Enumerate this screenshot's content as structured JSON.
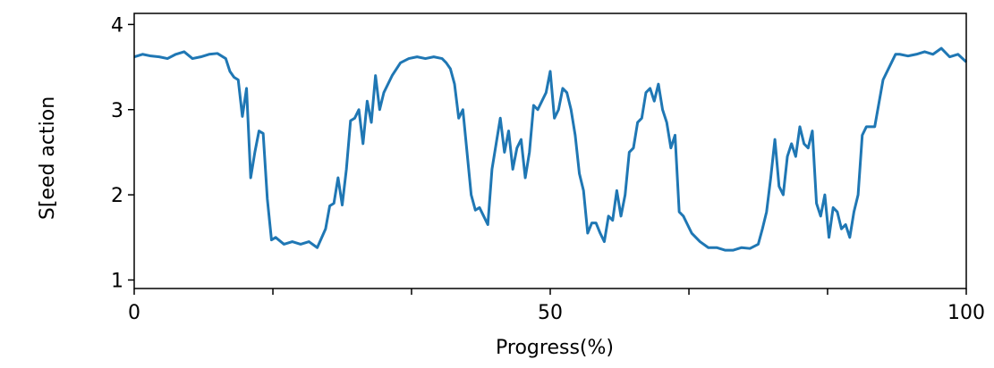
{
  "chart_data": {
    "type": "line",
    "xlabel": "Progress(%)",
    "ylabel": "S[eed action",
    "xlim": [
      0,
      100
    ],
    "ylim": [
      0.9,
      4.13
    ],
    "xticks": [
      0,
      50,
      100
    ],
    "xticks_minor": [
      16.67,
      33.33,
      66.67,
      83.33
    ],
    "yticks": [
      1,
      2,
      3,
      4
    ],
    "series": [
      {
        "color": "#1f77b4",
        "x": [
          0,
          1,
          2,
          3,
          4,
          5,
          6,
          7,
          8,
          9,
          10,
          11,
          11.5,
          12,
          12.5,
          13,
          13.5,
          14,
          14.5,
          15,
          15.5,
          16,
          16.5,
          17,
          18,
          19,
          20,
          21,
          22,
          23,
          23.5,
          24,
          24.5,
          25,
          25.5,
          26,
          26.5,
          27,
          27.5,
          28,
          28.5,
          29,
          29.5,
          30,
          31,
          32,
          33,
          34,
          35,
          36,
          37,
          37.5,
          38,
          38.5,
          39,
          39.5,
          40,
          40.5,
          41,
          41.5,
          42,
          42.5,
          43,
          43.5,
          44,
          44.5,
          45,
          45.5,
          46,
          46.5,
          47,
          47.5,
          48,
          48.5,
          49,
          49.5,
          50,
          50.5,
          51,
          51.5,
          52,
          52.5,
          53,
          53.5,
          54,
          54.5,
          55,
          55.5,
          56,
          56.5,
          57,
          57.5,
          58,
          58.5,
          59,
          59.5,
          60,
          60.5,
          61,
          61.5,
          62,
          62.5,
          63,
          63.5,
          64,
          64.5,
          65,
          65.5,
          66,
          66.5,
          67,
          68,
          69,
          70,
          71,
          72,
          73,
          74,
          75,
          75.5,
          76,
          76.5,
          77,
          77.5,
          78,
          78.5,
          79,
          79.5,
          80,
          80.5,
          81,
          81.5,
          82,
          82.5,
          83,
          83.5,
          84,
          84.5,
          85,
          85.5,
          86,
          86.5,
          87,
          87.5,
          88,
          89,
          90,
          91,
          91.5,
          92,
          93,
          94,
          95,
          96,
          97,
          98,
          99,
          100
        ],
        "values": [
          3.62,
          3.65,
          3.63,
          3.62,
          3.6,
          3.65,
          3.68,
          3.6,
          3.62,
          3.65,
          3.66,
          3.6,
          3.45,
          3.38,
          3.35,
          2.92,
          3.25,
          2.2,
          2.5,
          2.75,
          2.72,
          1.95,
          1.47,
          1.5,
          1.42,
          1.45,
          1.42,
          1.45,
          1.38,
          1.6,
          1.87,
          1.9,
          2.2,
          1.88,
          2.3,
          2.87,
          2.9,
          3.0,
          2.6,
          3.1,
          2.85,
          3.4,
          3.0,
          3.2,
          3.4,
          3.55,
          3.6,
          3.62,
          3.6,
          3.62,
          3.6,
          3.55,
          3.48,
          3.3,
          2.9,
          3.0,
          2.5,
          2.0,
          1.82,
          1.85,
          1.75,
          1.65,
          2.3,
          2.6,
          2.9,
          2.5,
          2.75,
          2.3,
          2.55,
          2.65,
          2.2,
          2.5,
          3.05,
          3.0,
          3.1,
          3.2,
          3.45,
          2.9,
          3.0,
          3.25,
          3.2,
          3.0,
          2.7,
          2.25,
          2.05,
          1.55,
          1.67,
          1.67,
          1.55,
          1.45,
          1.75,
          1.7,
          2.05,
          1.75,
          2.0,
          2.5,
          2.55,
          2.85,
          2.9,
          3.2,
          3.25,
          3.1,
          3.3,
          3.0,
          2.85,
          2.55,
          2.7,
          1.8,
          1.75,
          1.65,
          1.55,
          1.45,
          1.38,
          1.38,
          1.35,
          1.35,
          1.38,
          1.37,
          1.42,
          1.6,
          1.8,
          2.2,
          2.65,
          2.1,
          2.0,
          2.45,
          2.6,
          2.45,
          2.8,
          2.6,
          2.55,
          2.75,
          1.9,
          1.75,
          2.0,
          1.5,
          1.85,
          1.8,
          1.6,
          1.65,
          1.5,
          1.8,
          2.0,
          2.7,
          2.8,
          2.8,
          3.35,
          3.55,
          3.65,
          3.65,
          3.63,
          3.65,
          3.68,
          3.65,
          3.72,
          3.62,
          3.65,
          3.56
        ]
      }
    ]
  }
}
